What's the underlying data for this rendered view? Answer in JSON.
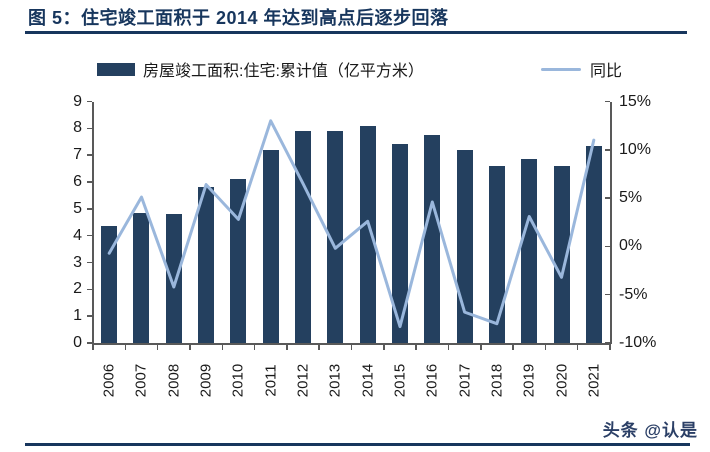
{
  "title": "图 5：住宅竣工面积于 2014 年达到高点后逐步回落",
  "watermark": "头条 @认是",
  "colors": {
    "title_navy": "#17365D",
    "bar_navy": "#24405F",
    "line_blue": "#9AB7DC",
    "axis_gray": "#595959"
  },
  "chart_data": {
    "type": "bar",
    "subtype": "bar+line combo, dual axis",
    "categories": [
      "2006",
      "2007",
      "2008",
      "2009",
      "2010",
      "2011",
      "2012",
      "2013",
      "2014",
      "2015",
      "2016",
      "2017",
      "2018",
      "2019",
      "2020",
      "2021"
    ],
    "series": [
      {
        "name": "房屋竣工面积:住宅:累计值（亿平方米）",
        "type": "bar",
        "axis": "left",
        "color": "#24405F",
        "values": [
          4.35,
          4.85,
          4.8,
          5.8,
          6.1,
          7.2,
          7.9,
          7.9,
          8.1,
          7.4,
          7.75,
          7.2,
          6.6,
          6.85,
          6.6,
          7.35
        ]
      },
      {
        "name": "同比",
        "type": "line",
        "axis": "right",
        "color": "#9AB7DC",
        "values": [
          -0.7,
          5.1,
          -4.2,
          6.4,
          2.8,
          13.0,
          6.5,
          -0.2,
          2.6,
          -8.3,
          4.6,
          -6.8,
          -8.0,
          3.1,
          -3.2,
          11.0
        ]
      }
    ],
    "left_axis": {
      "min": 0,
      "max": 9,
      "step": 1,
      "tick_labels": [
        "0",
        "1",
        "2",
        "3",
        "4",
        "5",
        "6",
        "7",
        "8",
        "9"
      ]
    },
    "right_axis": {
      "min": -10,
      "max": 15,
      "step": 5,
      "tick_labels": [
        "-10%",
        "-5%",
        "0%",
        "5%",
        "10%",
        "15%"
      ]
    },
    "grid": false,
    "legend_position": "top"
  }
}
